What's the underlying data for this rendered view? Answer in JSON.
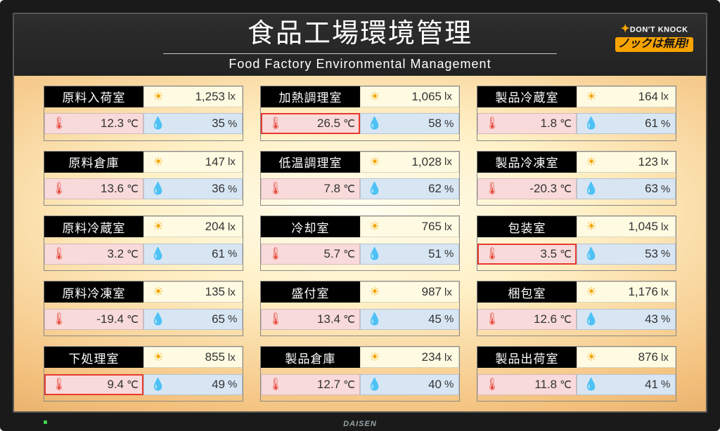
{
  "header": {
    "title_ja": "食品工場環境管理",
    "title_en": "Food Factory Environmental Management"
  },
  "logo": {
    "top_text": "DON'T KNOCK",
    "bottom_text": "ノックは無用!"
  },
  "brand": "DAISEN",
  "units": {
    "lux": "lx",
    "temp": "℃",
    "hum": "%"
  },
  "colors": {
    "header_bg": "#2a2a2a",
    "content_bg_center": "#fffef0",
    "content_bg_edge": "#d89a58",
    "room_name_bg": "#000000",
    "lux_bg": "#fffbe2",
    "temp_bg": "#f9dada",
    "hum_bg": "#d8e6f4",
    "alert_border": "#e63b2e",
    "icon_sun": "#f4a400",
    "icon_therm": "#e63b2e",
    "icon_drop": "#2172cf"
  },
  "rooms": [
    {
      "name": "原料入荷室",
      "lux": "1,253",
      "temp": "12.3",
      "hum": "35",
      "temp_alert": false
    },
    {
      "name": "加熱調理室",
      "lux": "1,065",
      "temp": "26.5",
      "hum": "58",
      "temp_alert": true
    },
    {
      "name": "製品冷蔵室",
      "lux": "164",
      "temp": "1.8",
      "hum": "61",
      "temp_alert": false
    },
    {
      "name": "原料倉庫",
      "lux": "147",
      "temp": "13.6",
      "hum": "36",
      "temp_alert": false
    },
    {
      "name": "低温調理室",
      "lux": "1,028",
      "temp": "7.8",
      "hum": "62",
      "temp_alert": false
    },
    {
      "name": "製品冷凍室",
      "lux": "123",
      "temp": "-20.3",
      "hum": "63",
      "temp_alert": false
    },
    {
      "name": "原料冷蔵室",
      "lux": "204",
      "temp": "3.2",
      "hum": "61",
      "temp_alert": false
    },
    {
      "name": "冷却室",
      "lux": "765",
      "temp": "5.7",
      "hum": "51",
      "temp_alert": false
    },
    {
      "name": "包装室",
      "lux": "1,045",
      "temp": "3.5",
      "hum": "53",
      "temp_alert": true
    },
    {
      "name": "原料冷凍室",
      "lux": "135",
      "temp": "-19.4",
      "hum": "65",
      "temp_alert": false
    },
    {
      "name": "盛付室",
      "lux": "987",
      "temp": "13.4",
      "hum": "45",
      "temp_alert": false
    },
    {
      "name": "梱包室",
      "lux": "1,176",
      "temp": "12.6",
      "hum": "43",
      "temp_alert": false
    },
    {
      "name": "下処理室",
      "lux": "855",
      "temp": "9.4",
      "hum": "49",
      "temp_alert": true
    },
    {
      "name": "製品倉庫",
      "lux": "234",
      "temp": "12.7",
      "hum": "40",
      "temp_alert": false
    },
    {
      "name": "製品出荷室",
      "lux": "876",
      "temp": "11.8",
      "hum": "41",
      "temp_alert": false
    }
  ]
}
